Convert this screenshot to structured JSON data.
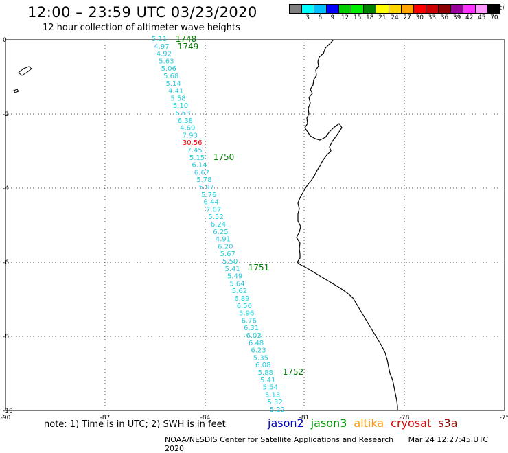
{
  "header": {
    "title": "12:00 – 23:59 UTC 03/23/2020",
    "subtitle": "12 hour collection of altimeter wave heights"
  },
  "legend": {
    "unit": "(ft)",
    "bins": [
      {
        "color": "#808080",
        "label": ""
      },
      {
        "color": "#00ffff",
        "label": "3"
      },
      {
        "color": "#00bfff",
        "label": "6"
      },
      {
        "color": "#0000ff",
        "label": "9"
      },
      {
        "color": "#00cc00",
        "label": "12"
      },
      {
        "color": "#00ee00",
        "label": "15"
      },
      {
        "color": "#008000",
        "label": "18"
      },
      {
        "color": "#ffff00",
        "label": "21"
      },
      {
        "color": "#ffd700",
        "label": "24"
      },
      {
        "color": "#ffa500",
        "label": "27"
      },
      {
        "color": "#ff0000",
        "label": "30"
      },
      {
        "color": "#cc0000",
        "label": "33"
      },
      {
        "color": "#8b0000",
        "label": "36"
      },
      {
        "color": "#990099",
        "label": "39"
      },
      {
        "color": "#ff33ff",
        "label": "42"
      },
      {
        "color": "#ff99ff",
        "label": "45"
      },
      {
        "color": "#000000",
        "label": "70"
      }
    ]
  },
  "axes": {
    "x_ticks": [
      "-90",
      "-87",
      "-84",
      "-81",
      "-78",
      "-75"
    ],
    "y_ticks": [
      "0",
      "-2",
      "-4",
      "-6",
      "-8",
      "-10"
    ]
  },
  "colors": {
    "swh_normal": "#22ccdd",
    "swh_high": "#ff0000",
    "time_label": "#008000",
    "coastline": "#000000"
  },
  "track": {
    "swh_ft": [
      "5.11",
      "4.97",
      "4.92",
      "5.63",
      "5.06",
      "5.68",
      "5.14",
      "4.41",
      "5.58",
      "5.10",
      "6.63",
      "6.38",
      "4.69",
      "7.93",
      "30.56",
      "7.45",
      "5.15",
      "6.14",
      "6.67",
      "5.78",
      "5.97",
      "5.76",
      "6.44",
      "7.07",
      "5.52",
      "6.24",
      "6.25",
      "4.91",
      "6.20",
      "5.67",
      "5.50",
      "5.41",
      "5.49",
      "5.64",
      "5.62",
      "6.89",
      "6.50",
      "5.96",
      "6.76",
      "6.31",
      "6.03",
      "6.48",
      "6.23",
      "5.35",
      "6.08",
      "5.88",
      "5.41",
      "5.54",
      "5.13",
      "5.32",
      "5.22"
    ],
    "times": [
      "1748",
      "1749",
      "1750",
      "1751",
      "1752"
    ]
  },
  "footer": {
    "note": "note:  1) Time is in UTC; 2) SWH is in feet",
    "credit": "NOAA/NESDIS Center for Satellite Applications and Research",
    "timestamp": "Mar 24 12:27:45 UTC 2020",
    "missions": [
      {
        "name": "jason2",
        "color": "#0000cc"
      },
      {
        "name": "jason3",
        "color": "#009900"
      },
      {
        "name": "altika",
        "color": "#ff9900"
      },
      {
        "name": "cryosat",
        "color": "#dd0000"
      },
      {
        "name": "s3a",
        "color": "#990000"
      }
    ]
  }
}
